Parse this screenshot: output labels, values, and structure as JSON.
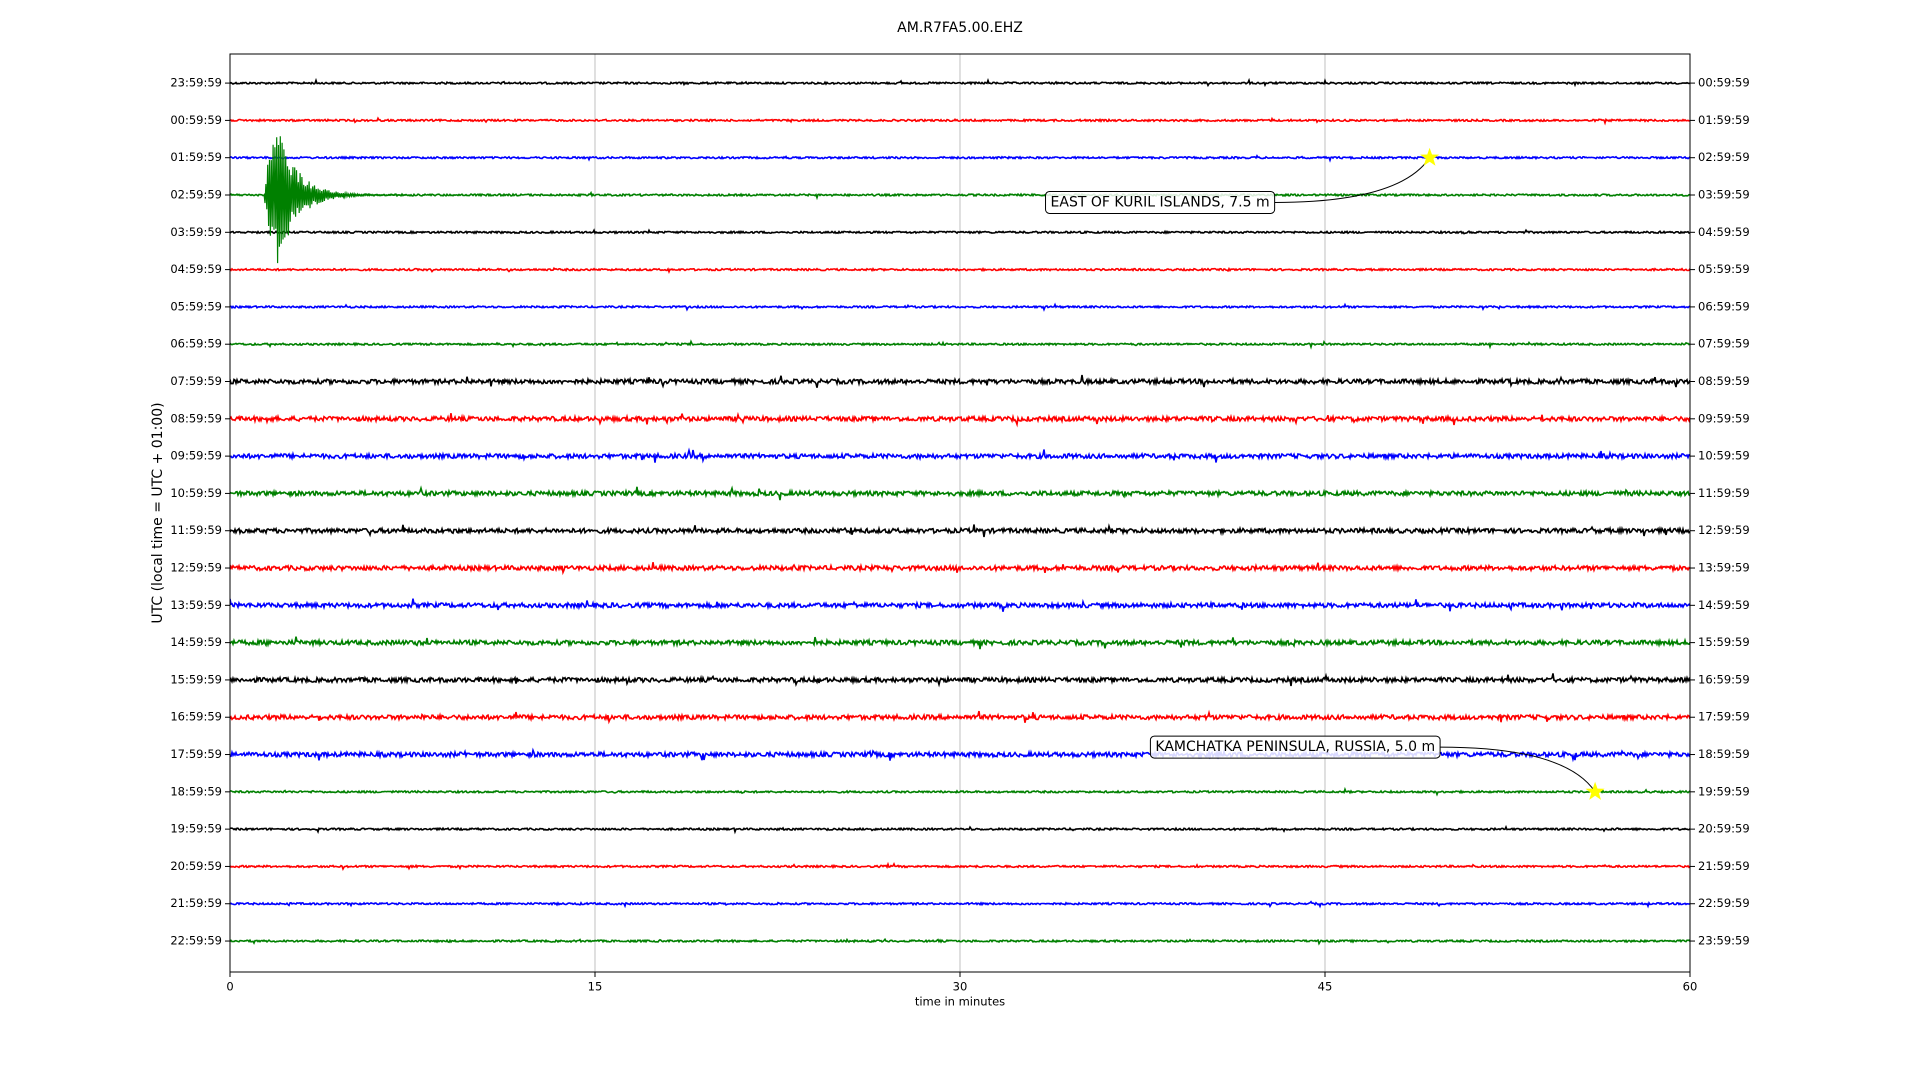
{
  "chart_data": {
    "type": "helicorder",
    "title": "AM.R7FA5.00.EHZ",
    "x_label": "time in minutes",
    "y_label": "UTC (local time = UTC + 01:00)",
    "xlim": [
      0,
      60
    ],
    "xticks": [
      0,
      15,
      30,
      45,
      60
    ],
    "grid": true,
    "ylim": [
      -0.78,
      23.83
    ],
    "yticks": [
      {
        "value": 0,
        "label": "23:59:59"
      },
      {
        "value": 1,
        "label": "00:59:59"
      },
      {
        "value": 2,
        "label": "01:59:59"
      },
      {
        "value": 3,
        "label": "02:59:59"
      },
      {
        "value": 4,
        "label": "03:59:59"
      },
      {
        "value": 5,
        "label": "04:59:59"
      },
      {
        "value": 6,
        "label": "05:59:59"
      },
      {
        "value": 7,
        "label": "06:59:59"
      },
      {
        "value": 8,
        "label": "07:59:59"
      },
      {
        "value": 9,
        "label": "08:59:59"
      },
      {
        "value": 10,
        "label": "09:59:59"
      },
      {
        "value": 11,
        "label": "10:59:59"
      },
      {
        "value": 12,
        "label": "11:59:59"
      },
      {
        "value": 13,
        "label": "12:59:59"
      },
      {
        "value": 14,
        "label": "13:59:59"
      },
      {
        "value": 15,
        "label": "14:59:59"
      },
      {
        "value": 16,
        "label": "15:59:59"
      },
      {
        "value": 17,
        "label": "16:59:59"
      },
      {
        "value": 18,
        "label": "17:59:59"
      },
      {
        "value": 19,
        "label": "18:59:59"
      },
      {
        "value": 20,
        "label": "19:59:59"
      },
      {
        "value": 21,
        "label": "20:59:59"
      },
      {
        "value": 22,
        "label": "21:59:59"
      },
      {
        "value": 23,
        "label": "22:59:59"
      }
    ],
    "y2ticks": [
      {
        "value": 0,
        "label": "00:59:59"
      },
      {
        "value": 1,
        "label": "01:59:59"
      },
      {
        "value": 2,
        "label": "02:59:59"
      },
      {
        "value": 3,
        "label": "03:59:59"
      },
      {
        "value": 4,
        "label": "04:59:59"
      },
      {
        "value": 5,
        "label": "05:59:59"
      },
      {
        "value": 6,
        "label": "06:59:59"
      },
      {
        "value": 7,
        "label": "07:59:59"
      },
      {
        "value": 8,
        "label": "08:59:59"
      },
      {
        "value": 9,
        "label": "09:59:59"
      },
      {
        "value": 10,
        "label": "10:59:59"
      },
      {
        "value": 11,
        "label": "11:59:59"
      },
      {
        "value": 12,
        "label": "12:59:59"
      },
      {
        "value": 13,
        "label": "13:59:59"
      },
      {
        "value": 14,
        "label": "14:59:59"
      },
      {
        "value": 15,
        "label": "15:59:59"
      },
      {
        "value": 16,
        "label": "16:59:59"
      },
      {
        "value": 17,
        "label": "17:59:59"
      },
      {
        "value": 18,
        "label": "18:59:59"
      },
      {
        "value": 19,
        "label": "19:59:59"
      },
      {
        "value": 20,
        "label": "20:59:59"
      },
      {
        "value": 21,
        "label": "21:59:59"
      },
      {
        "value": 22,
        "label": "22:59:59"
      },
      {
        "value": 23,
        "label": "23:59:59"
      }
    ],
    "trace_colors": [
      "#000000",
      "#ff0000",
      "#0000ff",
      "#008000"
    ],
    "signals": [
      {
        "row": 3,
        "x": 1.4,
        "amplitude": 3.7
      }
    ],
    "annotations": [
      {
        "text": "EAST OF KURIL ISLANDS, 7.5 m",
        "x": 49.3,
        "row": 2,
        "star_color": "#ffff00"
      },
      {
        "text": "KAMCHATKA PENINSULA, RUSSIA, 5.0 m",
        "x": 56.1,
        "row": 19,
        "star_color": "#ffff00"
      }
    ]
  }
}
